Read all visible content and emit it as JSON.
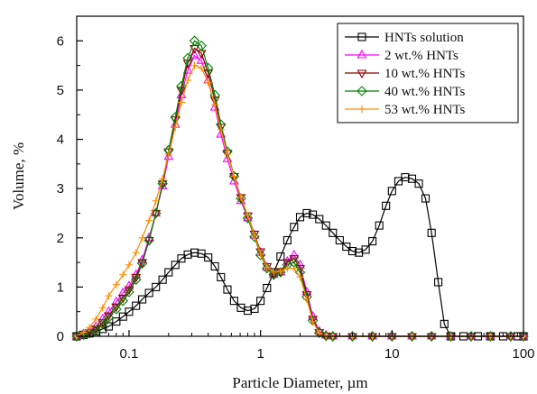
{
  "chart_data": {
    "type": "line",
    "title": "",
    "xlabel": "Particle Diameter, µm",
    "ylabel": "Volume, %",
    "xscale": "log",
    "xlim": [
      0.04,
      100
    ],
    "ylim": [
      0,
      6.5
    ],
    "xticks": [
      0.1,
      1,
      10,
      100
    ],
    "xtick_labels": [
      "0.1",
      "1",
      "10",
      "100"
    ],
    "yticks": [
      0,
      1,
      2,
      3,
      4,
      5,
      6
    ],
    "ytick_labels": [
      "0",
      "1",
      "2",
      "3",
      "4",
      "5",
      "6"
    ],
    "grid": false,
    "legend": {
      "position": "top-right"
    },
    "series": [
      {
        "name": "HNTs solution",
        "color": "#000000",
        "marker": "square",
        "points": [
          [
            0.04,
            0.0
          ],
          [
            0.045,
            0.03
          ],
          [
            0.05,
            0.06
          ],
          [
            0.056,
            0.1
          ],
          [
            0.063,
            0.15
          ],
          [
            0.07,
            0.2
          ],
          [
            0.08,
            0.3
          ],
          [
            0.09,
            0.4
          ],
          [
            0.1,
            0.5
          ],
          [
            0.113,
            0.62
          ],
          [
            0.126,
            0.75
          ],
          [
            0.142,
            0.88
          ],
          [
            0.16,
            1.0
          ],
          [
            0.18,
            1.15
          ],
          [
            0.2,
            1.3
          ],
          [
            0.225,
            1.45
          ],
          [
            0.25,
            1.58
          ],
          [
            0.28,
            1.66
          ],
          [
            0.315,
            1.7
          ],
          [
            0.355,
            1.68
          ],
          [
            0.4,
            1.6
          ],
          [
            0.45,
            1.42
          ],
          [
            0.5,
            1.2
          ],
          [
            0.56,
            0.95
          ],
          [
            0.63,
            0.72
          ],
          [
            0.71,
            0.58
          ],
          [
            0.8,
            0.52
          ],
          [
            0.9,
            0.56
          ],
          [
            1.0,
            0.72
          ],
          [
            1.12,
            0.98
          ],
          [
            1.26,
            1.3
          ],
          [
            1.42,
            1.62
          ],
          [
            1.6,
            1.95
          ],
          [
            1.8,
            2.22
          ],
          [
            2.0,
            2.42
          ],
          [
            2.25,
            2.5
          ],
          [
            2.5,
            2.47
          ],
          [
            2.8,
            2.38
          ],
          [
            3.15,
            2.25
          ],
          [
            3.55,
            2.1
          ],
          [
            4.0,
            1.95
          ],
          [
            4.5,
            1.82
          ],
          [
            5.0,
            1.73
          ],
          [
            5.6,
            1.7
          ],
          [
            6.3,
            1.76
          ],
          [
            7.1,
            1.93
          ],
          [
            8.0,
            2.25
          ],
          [
            9.0,
            2.65
          ],
          [
            10.0,
            2.95
          ],
          [
            11.2,
            3.15
          ],
          [
            12.6,
            3.23
          ],
          [
            14.2,
            3.2
          ],
          [
            16.0,
            3.1
          ],
          [
            18.0,
            2.8
          ],
          [
            20.0,
            2.1
          ],
          [
            22.5,
            1.1
          ],
          [
            25.0,
            0.25
          ],
          [
            28.0,
            0.0
          ],
          [
            35.0,
            0.0
          ],
          [
            45.0,
            0.0
          ],
          [
            56.0,
            0.0
          ],
          [
            70.0,
            0.0
          ],
          [
            90.0,
            0.0
          ],
          [
            100.0,
            0.0
          ]
        ]
      },
      {
        "name": "2  wt.% HNTs",
        "color": "#ff00ff",
        "marker": "triangle-up",
        "points": [
          [
            0.04,
            0.0
          ],
          [
            0.045,
            0.05
          ],
          [
            0.05,
            0.1
          ],
          [
            0.056,
            0.2
          ],
          [
            0.063,
            0.35
          ],
          [
            0.07,
            0.5
          ],
          [
            0.08,
            0.7
          ],
          [
            0.09,
            0.88
          ],
          [
            0.1,
            1.02
          ],
          [
            0.113,
            1.25
          ],
          [
            0.126,
            1.55
          ],
          [
            0.142,
            2.0
          ],
          [
            0.16,
            2.5
          ],
          [
            0.18,
            3.05
          ],
          [
            0.2,
            3.65
          ],
          [
            0.225,
            4.3
          ],
          [
            0.25,
            4.9
          ],
          [
            0.28,
            5.4
          ],
          [
            0.315,
            5.7
          ],
          [
            0.355,
            5.6
          ],
          [
            0.4,
            5.2
          ],
          [
            0.45,
            4.65
          ],
          [
            0.5,
            4.1
          ],
          [
            0.56,
            3.6
          ],
          [
            0.63,
            3.15
          ],
          [
            0.71,
            2.75
          ],
          [
            0.8,
            2.4
          ],
          [
            0.9,
            2.05
          ],
          [
            1.0,
            1.7
          ],
          [
            1.12,
            1.4
          ],
          [
            1.26,
            1.25
          ],
          [
            1.42,
            1.3
          ],
          [
            1.6,
            1.52
          ],
          [
            1.8,
            1.65
          ],
          [
            2.0,
            1.45
          ],
          [
            2.25,
            0.9
          ],
          [
            2.5,
            0.4
          ],
          [
            2.8,
            0.1
          ],
          [
            3.15,
            0.02
          ],
          [
            3.55,
            0.0
          ],
          [
            5.0,
            0.0
          ],
          [
            7.1,
            0.0
          ],
          [
            10.0,
            0.0
          ],
          [
            14.2,
            0.0
          ],
          [
            20.0,
            0.0
          ],
          [
            28.0,
            0.0
          ],
          [
            40.0,
            0.0
          ],
          [
            56.0,
            0.0
          ],
          [
            80.0,
            0.0
          ],
          [
            100.0,
            0.0
          ]
        ]
      },
      {
        "name": "10 wt.% HNTs",
        "color": "#8b0000",
        "marker": "triangle-down",
        "points": [
          [
            0.04,
            0.0
          ],
          [
            0.045,
            0.04
          ],
          [
            0.05,
            0.08
          ],
          [
            0.056,
            0.15
          ],
          [
            0.063,
            0.28
          ],
          [
            0.07,
            0.42
          ],
          [
            0.08,
            0.6
          ],
          [
            0.09,
            0.78
          ],
          [
            0.1,
            0.95
          ],
          [
            0.113,
            1.2
          ],
          [
            0.126,
            1.5
          ],
          [
            0.142,
            1.95
          ],
          [
            0.16,
            2.5
          ],
          [
            0.18,
            3.1
          ],
          [
            0.2,
            3.75
          ],
          [
            0.225,
            4.4
          ],
          [
            0.25,
            5.0
          ],
          [
            0.28,
            5.55
          ],
          [
            0.315,
            5.85
          ],
          [
            0.355,
            5.75
          ],
          [
            0.4,
            5.35
          ],
          [
            0.45,
            4.8
          ],
          [
            0.5,
            4.25
          ],
          [
            0.56,
            3.72
          ],
          [
            0.63,
            3.25
          ],
          [
            0.71,
            2.82
          ],
          [
            0.8,
            2.45
          ],
          [
            0.9,
            2.08
          ],
          [
            1.0,
            1.72
          ],
          [
            1.12,
            1.42
          ],
          [
            1.26,
            1.28
          ],
          [
            1.42,
            1.32
          ],
          [
            1.6,
            1.5
          ],
          [
            1.8,
            1.58
          ],
          [
            2.0,
            1.38
          ],
          [
            2.25,
            0.85
          ],
          [
            2.5,
            0.35
          ],
          [
            2.8,
            0.08
          ],
          [
            3.15,
            0.01
          ],
          [
            3.55,
            0.0
          ],
          [
            5.0,
            0.0
          ],
          [
            7.1,
            0.0
          ],
          [
            10.0,
            0.0
          ],
          [
            14.2,
            0.0
          ],
          [
            20.0,
            0.0
          ],
          [
            28.0,
            0.0
          ],
          [
            40.0,
            0.0
          ],
          [
            56.0,
            0.0
          ],
          [
            80.0,
            0.0
          ],
          [
            100.0,
            0.0
          ]
        ]
      },
      {
        "name": "40 wt.% HNTs",
        "color": "#008000",
        "marker": "diamond",
        "points": [
          [
            0.04,
            0.0
          ],
          [
            0.045,
            0.03
          ],
          [
            0.05,
            0.06
          ],
          [
            0.056,
            0.12
          ],
          [
            0.063,
            0.25
          ],
          [
            0.07,
            0.38
          ],
          [
            0.08,
            0.55
          ],
          [
            0.09,
            0.72
          ],
          [
            0.1,
            0.9
          ],
          [
            0.113,
            1.15
          ],
          [
            0.126,
            1.48
          ],
          [
            0.142,
            1.95
          ],
          [
            0.16,
            2.5
          ],
          [
            0.18,
            3.1
          ],
          [
            0.2,
            3.78
          ],
          [
            0.225,
            4.45
          ],
          [
            0.25,
            5.08
          ],
          [
            0.28,
            5.65
          ],
          [
            0.315,
            6.0
          ],
          [
            0.355,
            5.9
          ],
          [
            0.4,
            5.45
          ],
          [
            0.45,
            4.9
          ],
          [
            0.5,
            4.3
          ],
          [
            0.56,
            3.75
          ],
          [
            0.63,
            3.25
          ],
          [
            0.71,
            2.8
          ],
          [
            0.8,
            2.4
          ],
          [
            0.9,
            2.02
          ],
          [
            1.0,
            1.65
          ],
          [
            1.12,
            1.38
          ],
          [
            1.26,
            1.25
          ],
          [
            1.42,
            1.3
          ],
          [
            1.6,
            1.45
          ],
          [
            1.8,
            1.5
          ],
          [
            2.0,
            1.3
          ],
          [
            2.25,
            0.8
          ],
          [
            2.5,
            0.32
          ],
          [
            2.8,
            0.07
          ],
          [
            3.15,
            0.01
          ],
          [
            3.55,
            0.0
          ],
          [
            5.0,
            0.0
          ],
          [
            7.1,
            0.0
          ],
          [
            10.0,
            0.0
          ],
          [
            14.2,
            0.0
          ],
          [
            20.0,
            0.0
          ],
          [
            28.0,
            0.0
          ],
          [
            40.0,
            0.0
          ],
          [
            56.0,
            0.0
          ],
          [
            80.0,
            0.0
          ],
          [
            100.0,
            0.0
          ]
        ]
      },
      {
        "name": "53 wt.% HNTs",
        "color": "#ff8c00",
        "marker": "plus",
        "points": [
          [
            0.04,
            0.0
          ],
          [
            0.045,
            0.08
          ],
          [
            0.05,
            0.18
          ],
          [
            0.056,
            0.35
          ],
          [
            0.063,
            0.58
          ],
          [
            0.07,
            0.82
          ],
          [
            0.08,
            1.05
          ],
          [
            0.09,
            1.25
          ],
          [
            0.1,
            1.45
          ],
          [
            0.113,
            1.7
          ],
          [
            0.126,
            2.0
          ],
          [
            0.142,
            2.35
          ],
          [
            0.16,
            2.75
          ],
          [
            0.18,
            3.2
          ],
          [
            0.2,
            3.7
          ],
          [
            0.225,
            4.25
          ],
          [
            0.25,
            4.75
          ],
          [
            0.28,
            5.2
          ],
          [
            0.315,
            5.5
          ],
          [
            0.355,
            5.45
          ],
          [
            0.4,
            5.15
          ],
          [
            0.45,
            4.7
          ],
          [
            0.5,
            4.2
          ],
          [
            0.56,
            3.7
          ],
          [
            0.63,
            3.25
          ],
          [
            0.71,
            2.82
          ],
          [
            0.8,
            2.45
          ],
          [
            0.9,
            2.05
          ],
          [
            1.0,
            1.68
          ],
          [
            1.12,
            1.4
          ],
          [
            1.26,
            1.3
          ],
          [
            1.42,
            1.32
          ],
          [
            1.6,
            1.38
          ],
          [
            1.8,
            1.38
          ],
          [
            2.0,
            1.2
          ],
          [
            2.25,
            0.75
          ],
          [
            2.5,
            0.3
          ],
          [
            2.8,
            0.06
          ],
          [
            3.15,
            0.01
          ],
          [
            3.55,
            0.0
          ],
          [
            5.0,
            0.0
          ],
          [
            7.1,
            0.0
          ],
          [
            10.0,
            0.0
          ],
          [
            14.2,
            0.0
          ],
          [
            20.0,
            0.0
          ],
          [
            28.0,
            0.0
          ],
          [
            40.0,
            0.0
          ],
          [
            56.0,
            0.0
          ],
          [
            80.0,
            0.0
          ],
          [
            100.0,
            0.0
          ]
        ]
      }
    ]
  }
}
